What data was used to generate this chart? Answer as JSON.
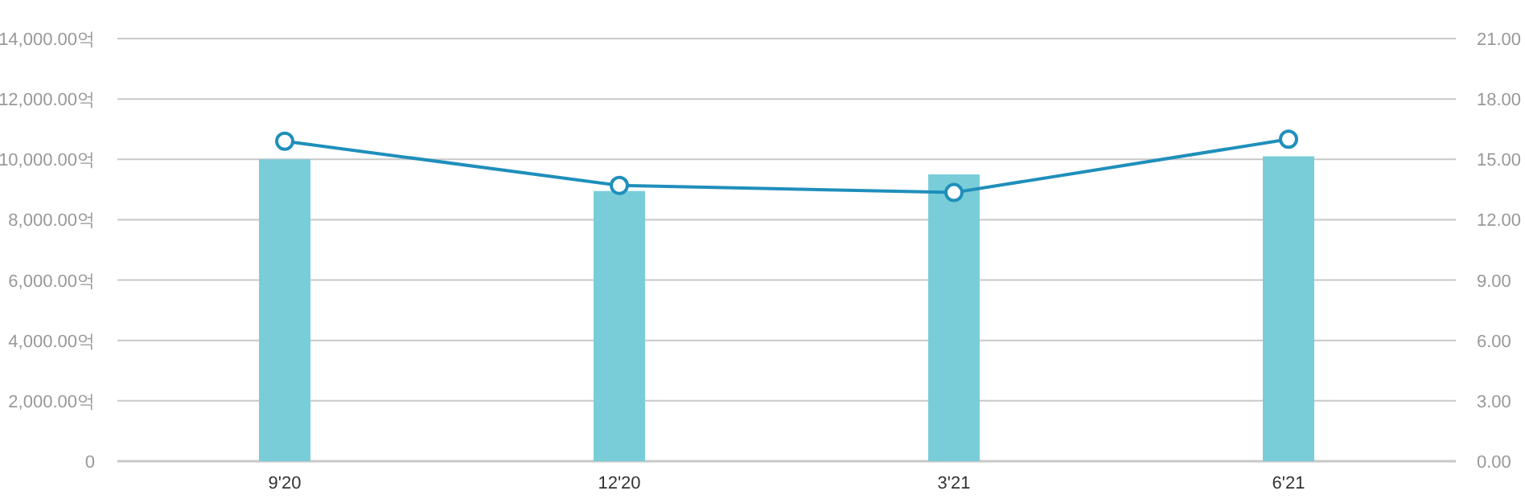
{
  "chart_data": {
    "type": "bar",
    "categories": [
      "9'20",
      "12'20",
      "3'21",
      "6'21"
    ],
    "series": [
      {
        "color": "#79cdd8",
        "values": [
          10000,
          8950,
          9500,
          10100
        ]
      },
      {
        "type": "line",
        "axis": "y2",
        "color": "#1f8fbb",
        "values": [
          15.9,
          13.7,
          13.35,
          16.0
        ]
      }
    ],
    "ylim": [
      0,
      14000
    ],
    "yticks": [
      0,
      {
        "value": 2000,
        "label": "2,000.00억"
      },
      {
        "value": 4000,
        "label": "4,000.00억"
      },
      {
        "value": 6000,
        "label": "6,000.00억"
      },
      {
        "value": 8000,
        "label": "8,000.00억"
      },
      {
        "value": 10000,
        "label": "10,000.00억"
      },
      {
        "value": 12000,
        "label": "12,000.00억"
      },
      {
        "value": 14000,
        "label": "14,000.00억"
      }
    ],
    "y2lim": [
      0,
      21
    ],
    "y2ticks": [
      {
        "value": 0,
        "label": "0.00"
      },
      {
        "value": 3,
        "label": "3.00"
      },
      {
        "value": 6,
        "label": "6.00"
      },
      {
        "value": 9,
        "label": "9.00"
      },
      {
        "value": 12,
        "label": "12.00"
      },
      {
        "value": 15,
        "label": "15.00"
      },
      {
        "value": 18,
        "label": "18.00"
      },
      {
        "value": 21,
        "label": "21.00"
      }
    ],
    "grid": "y",
    "marker": "circle",
    "line_style": "solid"
  }
}
